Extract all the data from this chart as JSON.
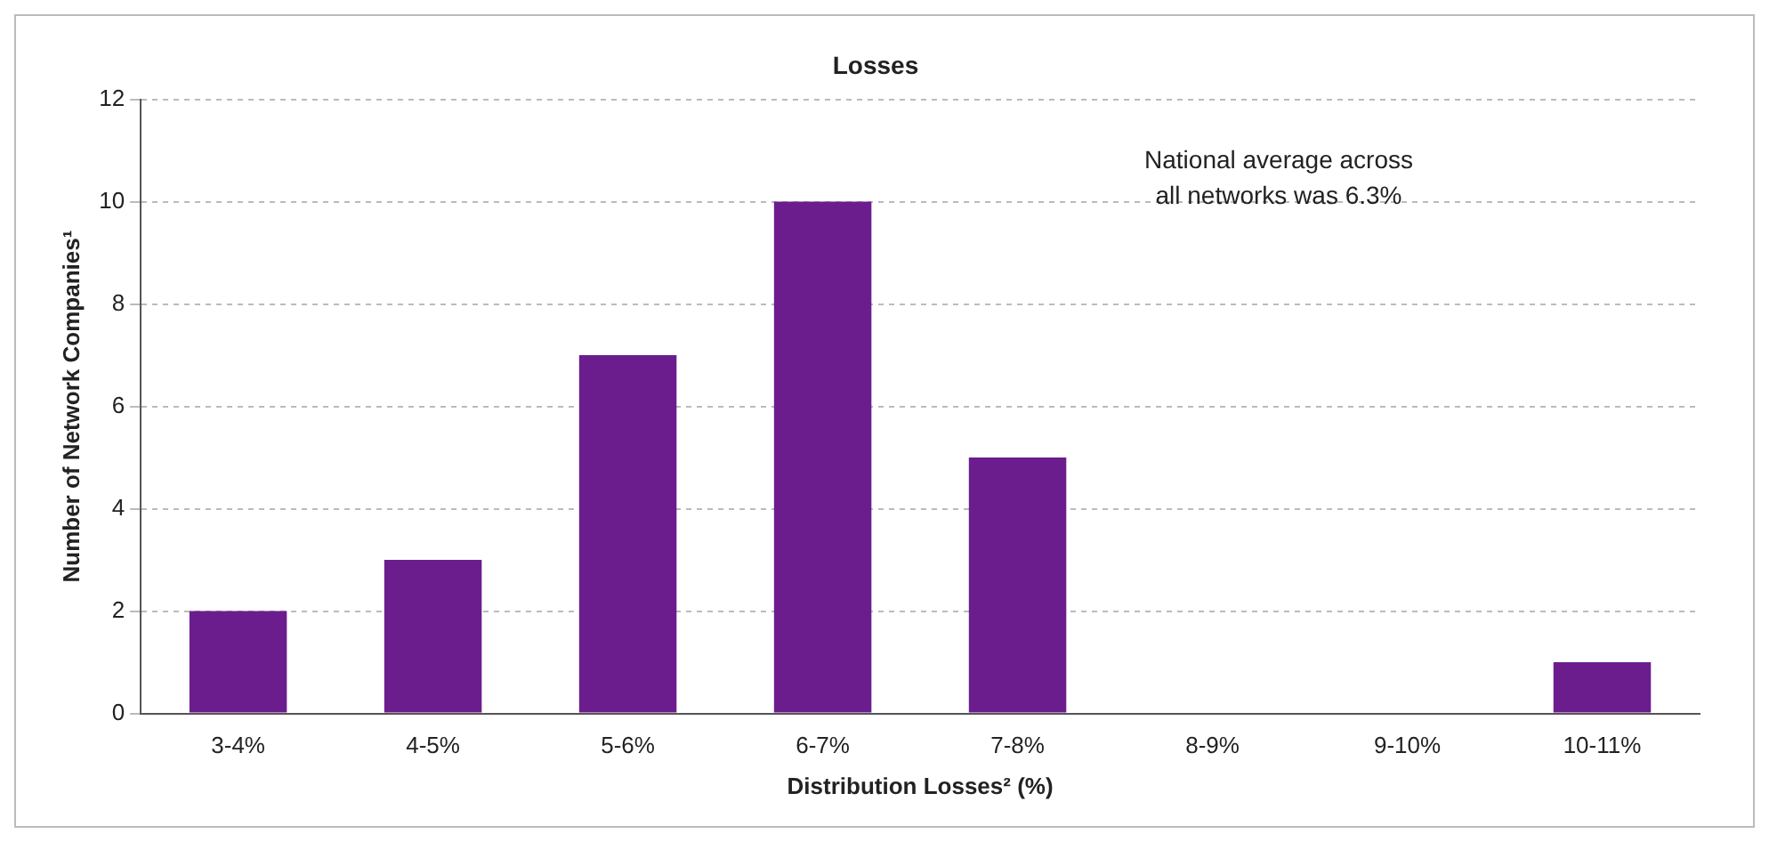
{
  "chart_data": {
    "type": "bar",
    "title": "Losses",
    "xlabel": "Distribution Losses² (%)",
    "ylabel": "Number of Network Companies¹",
    "categories": [
      "3-4%",
      "4-5%",
      "5-6%",
      "6-7%",
      "7-8%",
      "8-9%",
      "9-10%",
      "10-11%"
    ],
    "values": [
      2,
      3,
      7,
      10,
      5,
      0,
      0,
      1
    ],
    "color": "#6b1d8e",
    "ylim": [
      0,
      12
    ],
    "yticks": [
      0,
      2,
      4,
      6,
      8,
      10,
      12
    ],
    "grid": "y",
    "legend": false,
    "annotations": [
      "National average across all networks was 6.3%"
    ]
  }
}
